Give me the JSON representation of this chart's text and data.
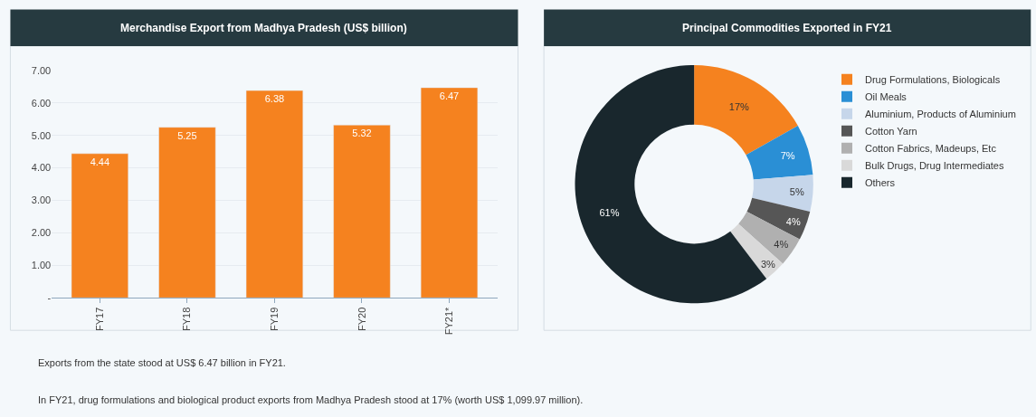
{
  "chart_data": [
    {
      "type": "bar",
      "title": "Merchandise Export from Madhya Pradesh (US$ billion)",
      "categories": [
        "FY17",
        "FY18",
        "FY19",
        "FY20",
        "FY21*"
      ],
      "values": [
        4.44,
        5.25,
        6.38,
        5.32,
        6.47
      ],
      "color": "#f5821f",
      "ylim": [
        0,
        7
      ],
      "yticks": [
        {
          "value": 0,
          "label": "-"
        },
        {
          "value": 1,
          "label": "1.00"
        },
        {
          "value": 2,
          "label": "2.00"
        },
        {
          "value": 3,
          "label": "3.00"
        },
        {
          "value": 4,
          "label": "4.00"
        },
        {
          "value": 5,
          "label": "5.00"
        },
        {
          "value": 6,
          "label": "6.00"
        },
        {
          "value": 7,
          "label": "7.00"
        }
      ],
      "grid": "y",
      "data_labels": true,
      "legend": false,
      "annotations": [
        "Exports from the state stood at US$ 6.47 billion in FY21.",
        "In FY21, drug formulations and biological product exports from Madhya Pradesh stood at 17% (worth US$ 1,099.97 million)."
      ]
    },
    {
      "type": "donut",
      "title": "Principal Commodities Exported in FY21",
      "categories": [
        "Drug Formulations, Biologicals",
        "Oil Meals",
        "Aluminium, Products of Aluminium",
        "Cotton Yarn",
        "Cotton Fabrics, Madeups, Etc",
        "Bulk Drugs, Drug Intermediates",
        "Others"
      ],
      "values": [
        17,
        7,
        5,
        4,
        4,
        3,
        61
      ],
      "value_labels": [
        "17%",
        "7%",
        "5%",
        "4%",
        "4%",
        "3%",
        "61%"
      ],
      "colors": [
        "#f5821f",
        "#2a8fd5",
        "#c6d6ea",
        "#565656",
        "#b0b0b0",
        "#d9d9d9",
        "#19272d"
      ],
      "legend": "right"
    }
  ]
}
